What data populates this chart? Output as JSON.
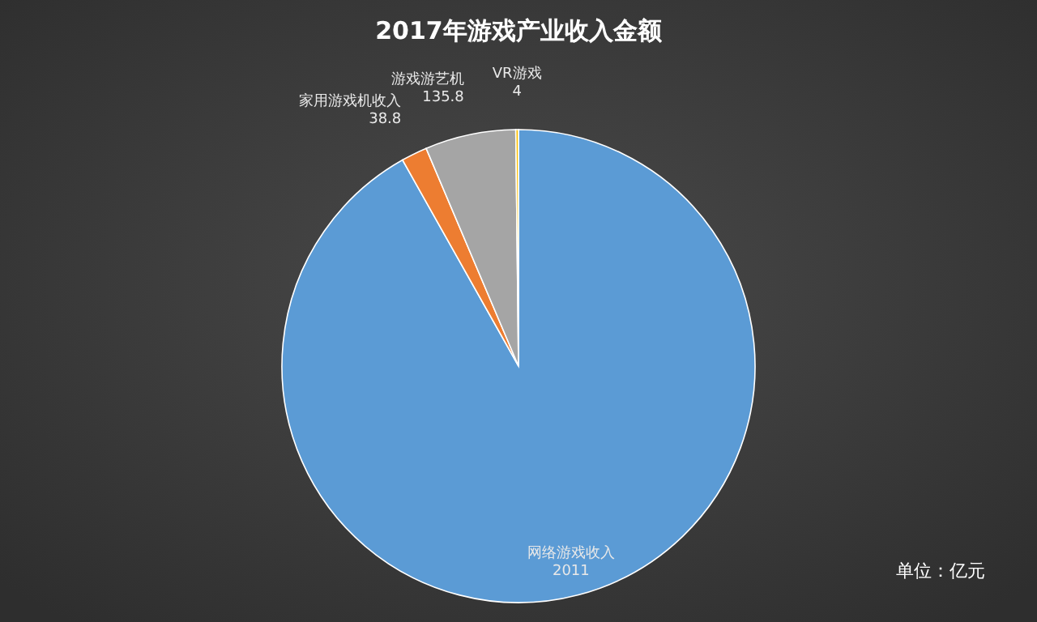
{
  "chart_data": {
    "type": "pie",
    "title": "2017年游戏产业收入金额",
    "categories": [
      "网络游戏收入",
      "家用游戏机收入",
      "游戏游艺机",
      "VR游戏"
    ],
    "values": [
      2011,
      38.8,
      135.8,
      4
    ],
    "colors": [
      "#5b9bd5",
      "#ed7d31",
      "#a5a5a5",
      "#ffc000"
    ],
    "data_labels": true,
    "annotations": [
      "单位：亿元"
    ]
  }
}
